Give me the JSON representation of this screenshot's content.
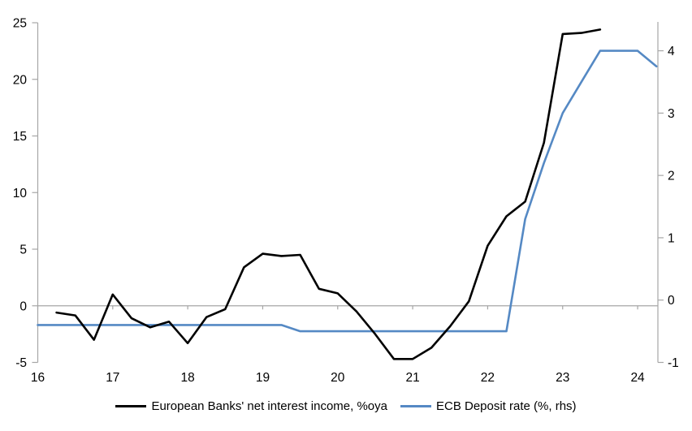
{
  "chart_data": {
    "type": "line",
    "title": "",
    "x_axis": {
      "min": 16,
      "max": 24.27,
      "ticks": [
        16,
        17,
        18,
        19,
        20,
        21,
        22,
        23,
        24
      ]
    },
    "left_axis": {
      "min": -5,
      "max": 25,
      "ticks": [
        -5,
        0,
        5,
        10,
        15,
        20,
        25
      ]
    },
    "right_axis": {
      "min": -1,
      "max": 4.45,
      "ticks": [
        -1,
        0,
        1,
        2,
        3,
        4
      ]
    },
    "grid": "zero-line-only",
    "legend_position": "bottom-center",
    "axis_color": "#a6a6a6",
    "text_color": "#000000",
    "series": [
      {
        "id": "ecb",
        "name": "ECB Deposit rate (%, rhs)",
        "axis": "right",
        "color": "#5589c4",
        "points": [
          [
            16.0,
            -0.4
          ],
          [
            19.25,
            -0.4
          ],
          [
            19.5,
            -0.5
          ],
          [
            22.25,
            -0.5
          ],
          [
            22.5,
            1.3
          ],
          [
            22.75,
            2.2
          ],
          [
            23.0,
            3.0
          ],
          [
            23.25,
            3.5
          ],
          [
            23.5,
            4.0
          ],
          [
            24.0,
            4.0
          ],
          [
            24.25,
            3.75
          ]
        ]
      },
      {
        "id": "nii",
        "name": "European Banks' net interest income, %oya",
        "axis": "left",
        "color": "#000000",
        "points": [
          [
            16.25,
            -0.6
          ],
          [
            16.5,
            -0.85
          ],
          [
            16.75,
            -3.0
          ],
          [
            17.0,
            1.0
          ],
          [
            17.25,
            -1.1
          ],
          [
            17.5,
            -1.9
          ],
          [
            17.75,
            -1.4
          ],
          [
            18.0,
            -3.3
          ],
          [
            18.25,
            -1.0
          ],
          [
            18.5,
            -0.3
          ],
          [
            18.75,
            3.4
          ],
          [
            19.0,
            4.6
          ],
          [
            19.25,
            4.4
          ],
          [
            19.5,
            4.5
          ],
          [
            19.75,
            1.5
          ],
          [
            20.0,
            1.1
          ],
          [
            20.25,
            -0.5
          ],
          [
            20.5,
            -2.5
          ],
          [
            20.75,
            -4.7
          ],
          [
            21.0,
            -4.7
          ],
          [
            21.25,
            -3.7
          ],
          [
            21.5,
            -1.8
          ],
          [
            21.75,
            0.4
          ],
          [
            22.0,
            5.3
          ],
          [
            22.25,
            7.9
          ],
          [
            22.5,
            9.2
          ],
          [
            22.75,
            14.4
          ],
          [
            23.0,
            24.0
          ],
          [
            23.25,
            24.1
          ],
          [
            23.5,
            24.4
          ]
        ]
      }
    ]
  },
  "legend": {
    "items": [
      {
        "label": "European Banks' net interest income, %oya"
      },
      {
        "label": "ECB Deposit rate (%, rhs)"
      }
    ]
  }
}
